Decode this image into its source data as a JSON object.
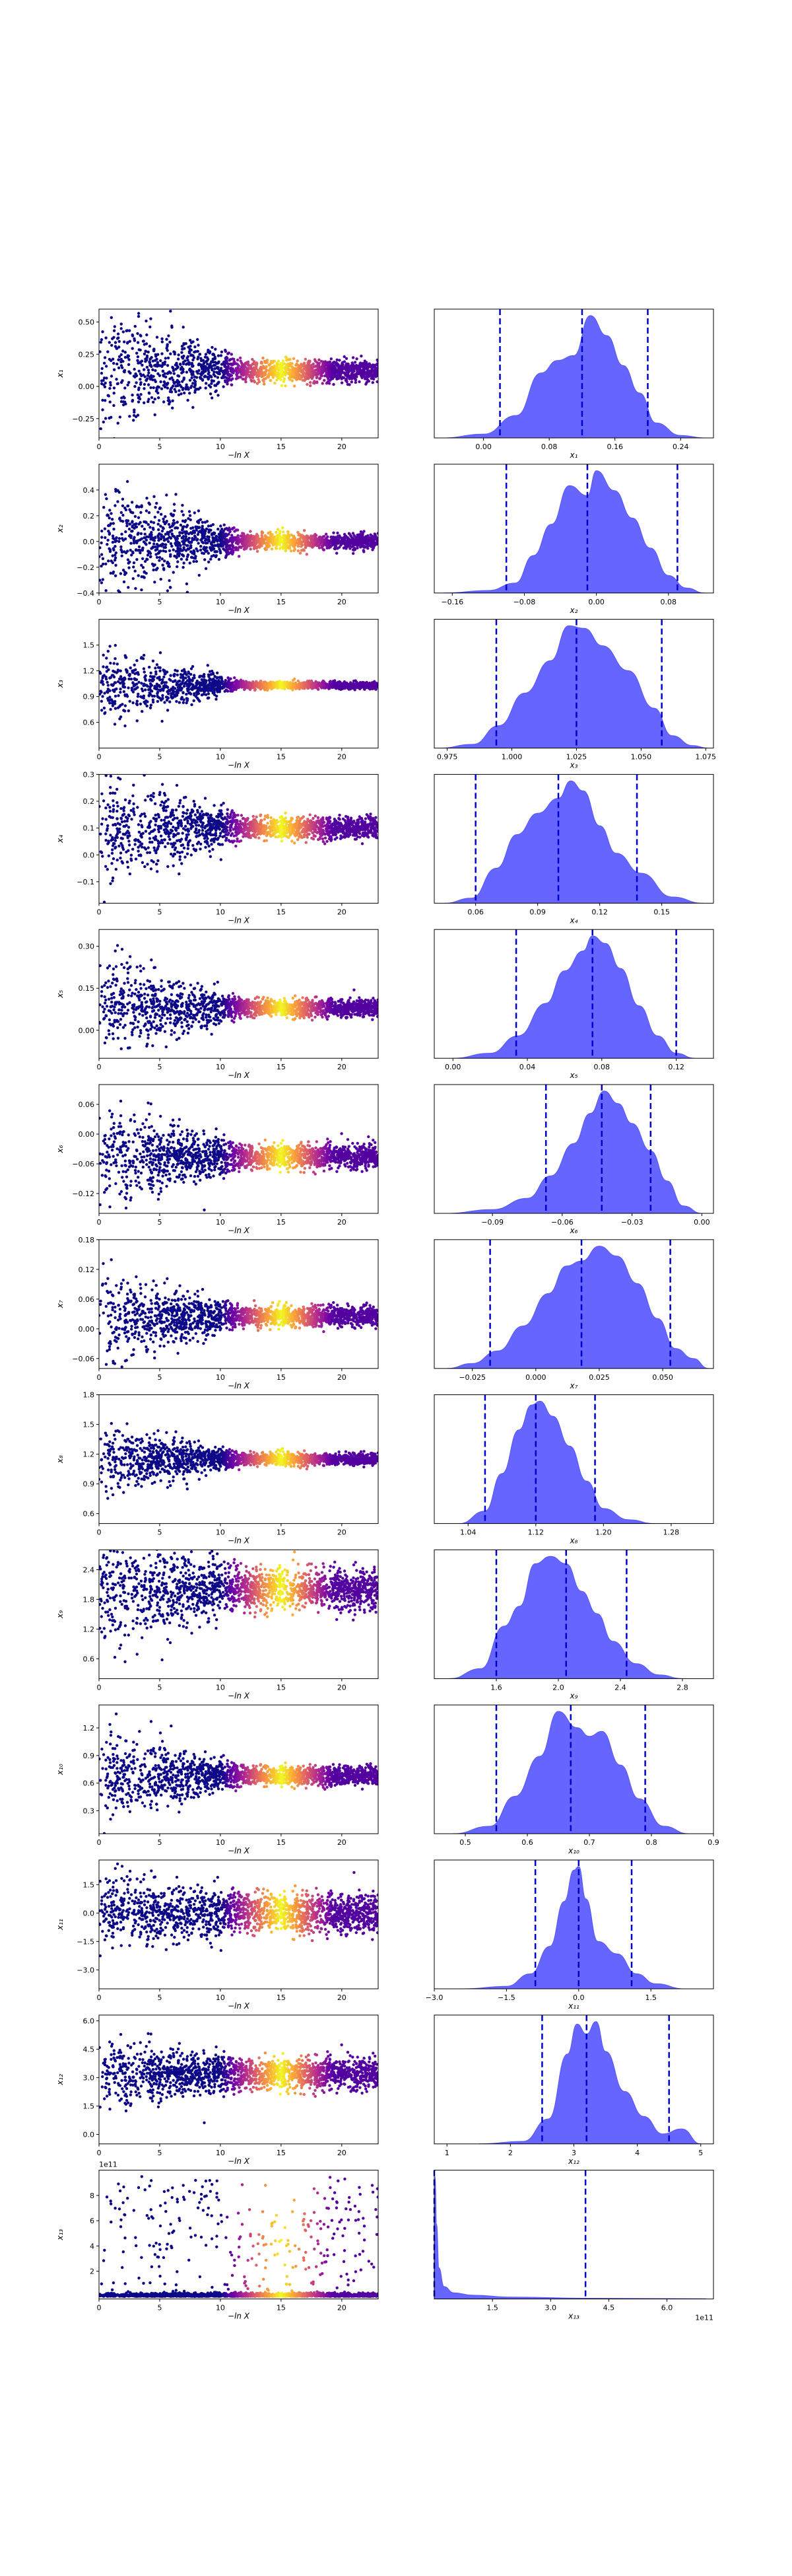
{
  "chart_data": {
    "type": "scatter",
    "scatter_xlabel": "−ln X",
    "scatter_xlim": [
      0,
      23
    ],
    "scatter_xticks": [
      "0",
      "5",
      "10",
      "15",
      "20"
    ],
    "scatter_xtick_values": [
      0,
      5,
      10,
      15,
      20
    ],
    "scatter_colormap": [
      "#0d0887",
      "#6a00a8",
      "#b12a90",
      "#e16462",
      "#fca636",
      "#f0f921"
    ],
    "posterior_fill_color": "#5555ff",
    "quantile_line_color": "#0000cc",
    "rows": [
      {
        "param_label": "x₁",
        "posterior_xlabel": "x₁",
        "scatter_ylim": [
          -0.4,
          0.6
        ],
        "scatter_yticks": [
          "−0.25",
          "0.00",
          "0.25",
          "0.50"
        ],
        "scatter_ytick_values": [
          -0.25,
          0,
          0.25,
          0.5
        ],
        "spread_start": 0.25,
        "spread_end": 0.04,
        "center": 0.12,
        "posterior_xlim": [
          -0.06,
          0.28
        ],
        "posterior_xticks": [
          "0.00",
          "0.08",
          "0.16",
          "0.24"
        ],
        "posterior_xtick_values": [
          0,
          0.08,
          0.16,
          0.24
        ],
        "density_x": [
          -0.05,
          0.0,
          0.04,
          0.07,
          0.09,
          0.11,
          0.13,
          0.15,
          0.17,
          0.19,
          0.21,
          0.24,
          0.27
        ],
        "density_y": [
          0.0,
          0.03,
          0.18,
          0.52,
          0.62,
          0.66,
          0.98,
          0.82,
          0.58,
          0.36,
          0.12,
          0.02,
          0.0
        ],
        "quantiles": [
          0.02,
          0.12,
          0.2
        ]
      },
      {
        "param_label": "x₂",
        "posterior_xlabel": "x₂",
        "scatter_ylim": [
          -0.4,
          0.6
        ],
        "scatter_yticks": [
          "−0.4",
          "−0.2",
          "0.0",
          "0.2",
          "0.4"
        ],
        "scatter_ytick_values": [
          -0.4,
          -0.2,
          0,
          0.2,
          0.4
        ],
        "spread_start": 0.25,
        "spread_end": 0.03,
        "center": 0.0,
        "posterior_xlim": [
          -0.18,
          0.13
        ],
        "posterior_xticks": [
          "−0.16",
          "−0.08",
          "0.00",
          "0.08"
        ],
        "posterior_xtick_values": [
          -0.16,
          -0.08,
          0,
          0.08
        ],
        "density_x": [
          -0.17,
          -0.12,
          -0.09,
          -0.07,
          -0.05,
          -0.03,
          -0.01,
          0.0,
          0.02,
          0.04,
          0.06,
          0.08,
          0.1,
          0.12
        ],
        "density_y": [
          0.0,
          0.02,
          0.08,
          0.3,
          0.55,
          0.86,
          0.78,
          0.98,
          0.82,
          0.6,
          0.36,
          0.14,
          0.04,
          0.0
        ],
        "quantiles": [
          -0.1,
          -0.01,
          0.09
        ]
      },
      {
        "param_label": "x₃",
        "posterior_xlabel": "x₃",
        "scatter_ylim": [
          0.3,
          1.8
        ],
        "scatter_yticks": [
          "0.6",
          "0.9",
          "1.2",
          "1.5"
        ],
        "scatter_ytick_values": [
          0.6,
          0.9,
          1.2,
          1.5
        ],
        "spread_start": 0.22,
        "spread_end": 0.02,
        "center": 1.03,
        "posterior_xlim": [
          0.97,
          1.078
        ],
        "posterior_xticks": [
          "0.975",
          "1.000",
          "1.025",
          "1.050",
          "1.075"
        ],
        "posterior_xtick_values": [
          0.975,
          1.0,
          1.025,
          1.05,
          1.075
        ],
        "density_x": [
          0.972,
          0.985,
          0.995,
          1.005,
          1.015,
          1.022,
          1.028,
          1.035,
          1.045,
          1.055,
          1.062,
          1.07,
          1.076
        ],
        "density_y": [
          0.0,
          0.03,
          0.18,
          0.44,
          0.7,
          0.98,
          0.96,
          0.82,
          0.62,
          0.32,
          0.1,
          0.02,
          0.0
        ],
        "quantiles": [
          0.994,
          1.025,
          1.058
        ]
      },
      {
        "param_label": "x₄",
        "posterior_xlabel": "x₄",
        "scatter_ylim": [
          -0.18,
          0.3
        ],
        "scatter_yticks": [
          "−0.1",
          "0.0",
          "0.1",
          "0.2",
          "0.3"
        ],
        "scatter_ytick_values": [
          -0.1,
          0,
          0.1,
          0.2,
          0.3
        ],
        "spread_start": 0.11,
        "spread_end": 0.02,
        "center": 0.1,
        "posterior_xlim": [
          0.04,
          0.175
        ],
        "posterior_xticks": [
          "0.06",
          "0.09",
          "0.12",
          "0.15"
        ],
        "posterior_xtick_values": [
          0.06,
          0.09,
          0.12,
          0.15
        ],
        "density_x": [
          0.045,
          0.058,
          0.07,
          0.08,
          0.09,
          0.1,
          0.106,
          0.112,
          0.12,
          0.128,
          0.14,
          0.155,
          0.17
        ],
        "density_y": [
          0.0,
          0.04,
          0.28,
          0.55,
          0.72,
          0.84,
          0.98,
          0.9,
          0.62,
          0.4,
          0.24,
          0.05,
          0.0
        ],
        "quantiles": [
          0.06,
          0.1,
          0.138
        ]
      },
      {
        "param_label": "x₅",
        "posterior_xlabel": "x₅",
        "scatter_ylim": [
          -0.1,
          0.36
        ],
        "scatter_yticks": [
          "0.00",
          "0.15",
          "0.30"
        ],
        "scatter_ytick_values": [
          0,
          0.15,
          0.3
        ],
        "spread_start": 0.09,
        "spread_end": 0.015,
        "center": 0.08,
        "posterior_xlim": [
          -0.01,
          0.14
        ],
        "posterior_xticks": [
          "0.00",
          "0.04",
          "0.08",
          "0.12"
        ],
        "posterior_xtick_values": [
          0,
          0.04,
          0.08,
          0.12
        ],
        "density_x": [
          0.0,
          0.02,
          0.035,
          0.05,
          0.06,
          0.07,
          0.075,
          0.082,
          0.09,
          0.1,
          0.11,
          0.12,
          0.13
        ],
        "density_y": [
          0.0,
          0.04,
          0.18,
          0.44,
          0.7,
          0.86,
          0.98,
          0.92,
          0.72,
          0.42,
          0.18,
          0.04,
          0.0
        ],
        "quantiles": [
          0.034,
          0.075,
          0.12
        ]
      },
      {
        "param_label": "x₆",
        "posterior_xlabel": "x₆",
        "scatter_ylim": [
          -0.16,
          0.1
        ],
        "scatter_yticks": [
          "−0.12",
          "−0.06",
          "0.00",
          "0.06"
        ],
        "scatter_ytick_values": [
          -0.12,
          -0.06,
          0,
          0.06
        ],
        "spread_start": 0.05,
        "spread_end": 0.012,
        "center": -0.045,
        "posterior_xlim": [
          -0.115,
          0.005
        ],
        "posterior_xticks": [
          "−0.09",
          "−0.06",
          "−0.03",
          "0.00"
        ],
        "posterior_xtick_values": [
          -0.09,
          -0.06,
          -0.03,
          0
        ],
        "density_x": [
          -0.11,
          -0.09,
          -0.075,
          -0.065,
          -0.055,
          -0.048,
          -0.042,
          -0.036,
          -0.03,
          -0.022,
          -0.015,
          -0.008,
          0.0
        ],
        "density_y": [
          0.0,
          0.03,
          0.12,
          0.3,
          0.56,
          0.8,
          0.98,
          0.88,
          0.72,
          0.5,
          0.26,
          0.06,
          0.0
        ],
        "quantiles": [
          -0.067,
          -0.043,
          -0.022
        ]
      },
      {
        "param_label": "x₇",
        "posterior_xlabel": "x₇",
        "scatter_ylim": [
          -0.08,
          0.18
        ],
        "scatter_yticks": [
          "−0.06",
          "0.00",
          "0.06",
          "0.12",
          "0.18"
        ],
        "scatter_ytick_values": [
          -0.06,
          0,
          0.06,
          0.12,
          0.18
        ],
        "spread_start": 0.045,
        "spread_end": 0.01,
        "center": 0.025,
        "posterior_xlim": [
          -0.04,
          0.07
        ],
        "posterior_xticks": [
          "−0.025",
          "0.000",
          "0.025",
          "0.050"
        ],
        "posterior_xtick_values": [
          -0.025,
          0,
          0.025,
          0.05
        ],
        "density_x": [
          -0.035,
          -0.025,
          -0.015,
          -0.005,
          0.005,
          0.012,
          0.018,
          0.025,
          0.032,
          0.04,
          0.048,
          0.055,
          0.062,
          0.068
        ],
        "density_y": [
          0.0,
          0.04,
          0.14,
          0.34,
          0.6,
          0.82,
          0.86,
          0.98,
          0.9,
          0.68,
          0.4,
          0.16,
          0.08,
          0.0
        ],
        "quantiles": [
          -0.018,
          0.018,
          0.053
        ]
      },
      {
        "param_label": "x₈",
        "posterior_xlabel": "x₈",
        "scatter_ylim": [
          0.5,
          1.8
        ],
        "scatter_yticks": [
          "0.6",
          "0.9",
          "1.2",
          "1.5",
          "1.8"
        ],
        "scatter_ytick_values": [
          0.6,
          0.9,
          1.2,
          1.5,
          1.8
        ],
        "spread_start": 0.18,
        "spread_end": 0.03,
        "center": 1.15,
        "posterior_xlim": [
          1.0,
          1.33
        ],
        "posterior_xticks": [
          "1.04",
          "1.12",
          "1.20",
          "1.28"
        ],
        "posterior_xtick_values": [
          1.04,
          1.12,
          1.2,
          1.28
        ],
        "density_x": [
          1.03,
          1.06,
          1.08,
          1.1,
          1.115,
          1.125,
          1.14,
          1.16,
          1.18,
          1.2,
          1.23,
          1.26
        ],
        "density_y": [
          0.0,
          0.1,
          0.4,
          0.75,
          0.95,
          0.98,
          0.86,
          0.62,
          0.34,
          0.12,
          0.03,
          0.0
        ],
        "quantiles": [
          1.06,
          1.12,
          1.19
        ]
      },
      {
        "param_label": "x₉",
        "posterior_xlabel": "x₉",
        "scatter_ylim": [
          0.2,
          2.8
        ],
        "scatter_yticks": [
          "0.6",
          "1.2",
          "1.8",
          "2.4"
        ],
        "scatter_ytick_values": [
          0.6,
          1.2,
          1.8,
          2.4
        ],
        "spread_start": 0.65,
        "spread_end": 0.2,
        "center": 2.0,
        "posterior_xlim": [
          1.2,
          3.0
        ],
        "posterior_xticks": [
          "1.6",
          "2.0",
          "2.4",
          "2.8"
        ],
        "posterior_xtick_values": [
          1.6,
          2.0,
          2.4,
          2.8
        ],
        "density_x": [
          1.3,
          1.5,
          1.65,
          1.75,
          1.85,
          1.95,
          2.05,
          2.15,
          2.25,
          2.35,
          2.5,
          2.65,
          2.8
        ],
        "density_y": [
          0.0,
          0.08,
          0.42,
          0.58,
          0.92,
          0.98,
          0.92,
          0.7,
          0.52,
          0.3,
          0.12,
          0.03,
          0.0
        ],
        "quantiles": [
          1.6,
          2.05,
          2.44
        ]
      },
      {
        "param_label": "x₁₀",
        "posterior_xlabel": "x₁₀",
        "scatter_ylim": [
          0.05,
          1.45
        ],
        "scatter_yticks": [
          "0.3",
          "0.6",
          "0.9",
          "1.2"
        ],
        "scatter_ytick_values": [
          0.3,
          0.6,
          0.9,
          1.2
        ],
        "spread_start": 0.25,
        "spread_end": 0.05,
        "center": 0.68,
        "posterior_xlim": [
          0.45,
          0.9
        ],
        "posterior_xticks": [
          "0.5",
          "0.6",
          "0.7",
          "0.8",
          "0.9"
        ],
        "posterior_xtick_values": [
          0.5,
          0.6,
          0.7,
          0.8,
          0.9
        ],
        "density_x": [
          0.48,
          0.54,
          0.58,
          0.62,
          0.65,
          0.68,
          0.7,
          0.72,
          0.75,
          0.78,
          0.82,
          0.86
        ],
        "density_y": [
          0.0,
          0.06,
          0.3,
          0.62,
          0.98,
          0.85,
          0.78,
          0.82,
          0.55,
          0.28,
          0.06,
          0.0
        ],
        "quantiles": [
          0.55,
          0.67,
          0.79
        ]
      },
      {
        "param_label": "x₁₁",
        "posterior_xlabel": "x₁₁",
        "scatter_ylim": [
          -4.0,
          2.8
        ],
        "scatter_yticks": [
          "−3.0",
          "−1.5",
          "0.0",
          "1.5"
        ],
        "scatter_ytick_values": [
          -3.0,
          -1.5,
          0,
          1.5
        ],
        "spread_start": 1.0,
        "spread_end": 0.5,
        "center": 0.0,
        "posterior_xlim": [
          -3.0,
          2.8
        ],
        "posterior_xticks": [
          "−3.0",
          "−1.5",
          "0.0",
          "1.5"
        ],
        "posterior_xtick_values": [
          -3.0,
          -1.5,
          0,
          1.5
        ],
        "density_x": [
          -2.4,
          -1.5,
          -1.0,
          -0.6,
          -0.3,
          -0.1,
          0.0,
          0.15,
          0.4,
          0.8,
          1.2,
          1.6,
          2.2
        ],
        "density_y": [
          0.0,
          0.02,
          0.12,
          0.34,
          0.7,
          0.95,
          0.98,
          0.72,
          0.38,
          0.28,
          0.12,
          0.04,
          0.0
        ],
        "quantiles": [
          -0.9,
          0.0,
          1.1
        ]
      },
      {
        "param_label": "x₁₂",
        "posterior_xlabel": "x₁₂",
        "scatter_ylim": [
          -0.5,
          6.3
        ],
        "scatter_yticks": [
          "0.0",
          "1.5",
          "3.0",
          "4.5",
          "6.0"
        ],
        "scatter_ytick_values": [
          0,
          1.5,
          3.0,
          4.5,
          6.0
        ],
        "spread_start": 0.9,
        "spread_end": 0.4,
        "center": 3.2,
        "posterior_xlim": [
          0.8,
          5.2
        ],
        "posterior_xticks": [
          "1",
          "2",
          "3",
          "4",
          "5"
        ],
        "posterior_xtick_values": [
          1,
          2,
          3,
          4,
          5
        ],
        "density_x": [
          1.5,
          2.2,
          2.6,
          2.9,
          3.05,
          3.2,
          3.35,
          3.5,
          3.8,
          4.1,
          4.4,
          4.7,
          5.0
        ],
        "density_y": [
          0.0,
          0.02,
          0.2,
          0.72,
          0.96,
          0.88,
          0.98,
          0.74,
          0.42,
          0.22,
          0.08,
          0.12,
          0.0
        ],
        "quantiles": [
          2.5,
          3.2,
          4.5
        ]
      },
      {
        "param_label": "x₁₃",
        "posterior_xlabel": "x₁₃",
        "scatter_ylim": [
          -0.2,
          10.0
        ],
        "scatter_yticks": [
          "2",
          "4",
          "6",
          "8"
        ],
        "scatter_ytick_values": [
          2,
          4,
          6,
          8
        ],
        "scatter_exponent": "1e11",
        "spread_start": 0.0,
        "spread_end": 0.0,
        "center": 0.0,
        "posterior_xlim": [
          0.0,
          7.2
        ],
        "posterior_xticks": [
          "1.5",
          "3.0",
          "4.5",
          "6.0"
        ],
        "posterior_xtick_values": [
          1.5,
          3.0,
          4.5,
          6.0
        ],
        "posterior_exponent": "1e11",
        "density_x": [
          0.0,
          0.02,
          0.06,
          0.12,
          0.25,
          0.5,
          1.0,
          2.0,
          4.0,
          7.0
        ],
        "density_y": [
          0.0,
          0.98,
          0.6,
          0.25,
          0.1,
          0.05,
          0.03,
          0.015,
          0.006,
          0.002
        ],
        "quantiles": [
          0.0,
          3.9
        ]
      }
    ]
  }
}
